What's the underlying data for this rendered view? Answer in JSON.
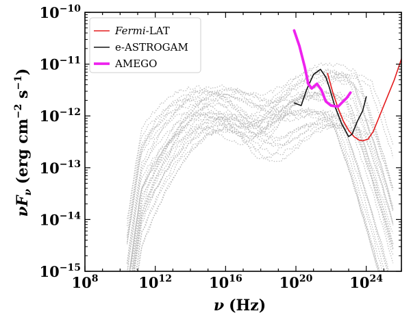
{
  "chart_data": {
    "type": "line",
    "xlabel": {
      "symbol": "ν",
      "unit": "(Hz)"
    },
    "ylabel": {
      "symbol": "νF",
      "sub": "ν",
      "unit_open": "(erg cm",
      "exp1": "−2",
      "mid": " s",
      "exp2": "−1",
      "unit_close": ")"
    },
    "x_scale": "log10",
    "y_scale": "log10",
    "xlim_log10": [
      8,
      26
    ],
    "ylim_log10": [
      -15,
      -10
    ],
    "x_ticks": [
      {
        "base": "10",
        "exp": "8",
        "value": 8
      },
      {
        "base": "10",
        "exp": "12",
        "value": 12
      },
      {
        "base": "10",
        "exp": "16",
        "value": 16
      },
      {
        "base": "10",
        "exp": "20",
        "value": 20
      },
      {
        "base": "10",
        "exp": "24",
        "value": 24
      }
    ],
    "y_ticks": [
      {
        "base": "10",
        "exp": "−15",
        "value": -15
      },
      {
        "base": "10",
        "exp": "−14",
        "value": -14
      },
      {
        "base": "10",
        "exp": "−13",
        "value": -13
      },
      {
        "base": "10",
        "exp": "−12",
        "value": -12
      },
      {
        "base": "10",
        "exp": "−11",
        "value": -11
      },
      {
        "base": "10",
        "exp": "−10",
        "value": -10
      }
    ],
    "legend_position": "top-left",
    "series": [
      {
        "name": "Fermi-LAT",
        "legend_parts": [
          {
            "text": "Fermi",
            "italic": true
          },
          {
            "text": "-LAT",
            "italic": false
          }
        ],
        "color": "#e41a1c",
        "line_width": 1.6,
        "points": [
          [
            21.8,
            -11.18
          ],
          [
            22.1,
            -11.55
          ],
          [
            22.4,
            -11.85
          ],
          [
            22.7,
            -12.1
          ],
          [
            23.0,
            -12.28
          ],
          [
            23.3,
            -12.4
          ],
          [
            23.6,
            -12.47
          ],
          [
            23.8,
            -12.48
          ],
          [
            24.1,
            -12.45
          ],
          [
            24.4,
            -12.3
          ],
          [
            24.7,
            -12.05
          ],
          [
            25.0,
            -11.8
          ],
          [
            25.3,
            -11.55
          ],
          [
            25.6,
            -11.3
          ],
          [
            25.9,
            -11.0
          ],
          [
            26.0,
            -10.9
          ]
        ]
      },
      {
        "name": "e-ASTROGAM",
        "legend_parts": [
          {
            "text": "e-ASTROGAM",
            "italic": false
          }
        ],
        "color": "#111111",
        "line_width": 1.6,
        "points": [
          [
            19.9,
            -11.75
          ],
          [
            20.3,
            -11.8
          ],
          [
            20.6,
            -11.5
          ],
          [
            21.0,
            -11.2
          ],
          [
            21.4,
            -11.1
          ],
          [
            21.7,
            -11.25
          ],
          [
            21.9,
            -11.45
          ],
          [
            22.2,
            -11.8
          ],
          [
            22.6,
            -12.15
          ],
          [
            23.0,
            -12.4
          ],
          [
            23.2,
            -12.35
          ],
          [
            23.5,
            -12.1
          ],
          [
            23.8,
            -11.9
          ],
          [
            24.0,
            -11.63
          ]
        ]
      },
      {
        "name": "AMEGO",
        "legend_parts": [
          {
            "text": "AMEGO",
            "italic": false
          }
        ],
        "color": "#ee22ee",
        "line_width": 3.8,
        "points": [
          [
            19.9,
            -10.35
          ],
          [
            20.2,
            -10.65
          ],
          [
            20.5,
            -11.05
          ],
          [
            20.7,
            -11.38
          ],
          [
            20.9,
            -11.47
          ],
          [
            21.2,
            -11.38
          ],
          [
            21.45,
            -11.5
          ],
          [
            21.7,
            -11.72
          ],
          [
            22.0,
            -11.8
          ],
          [
            22.4,
            -11.82
          ],
          [
            22.6,
            -11.75
          ],
          [
            22.9,
            -11.65
          ],
          [
            23.1,
            -11.55
          ]
        ]
      }
    ],
    "background_population": {
      "description_count": 30,
      "color": "#b4b4b4"
    }
  }
}
